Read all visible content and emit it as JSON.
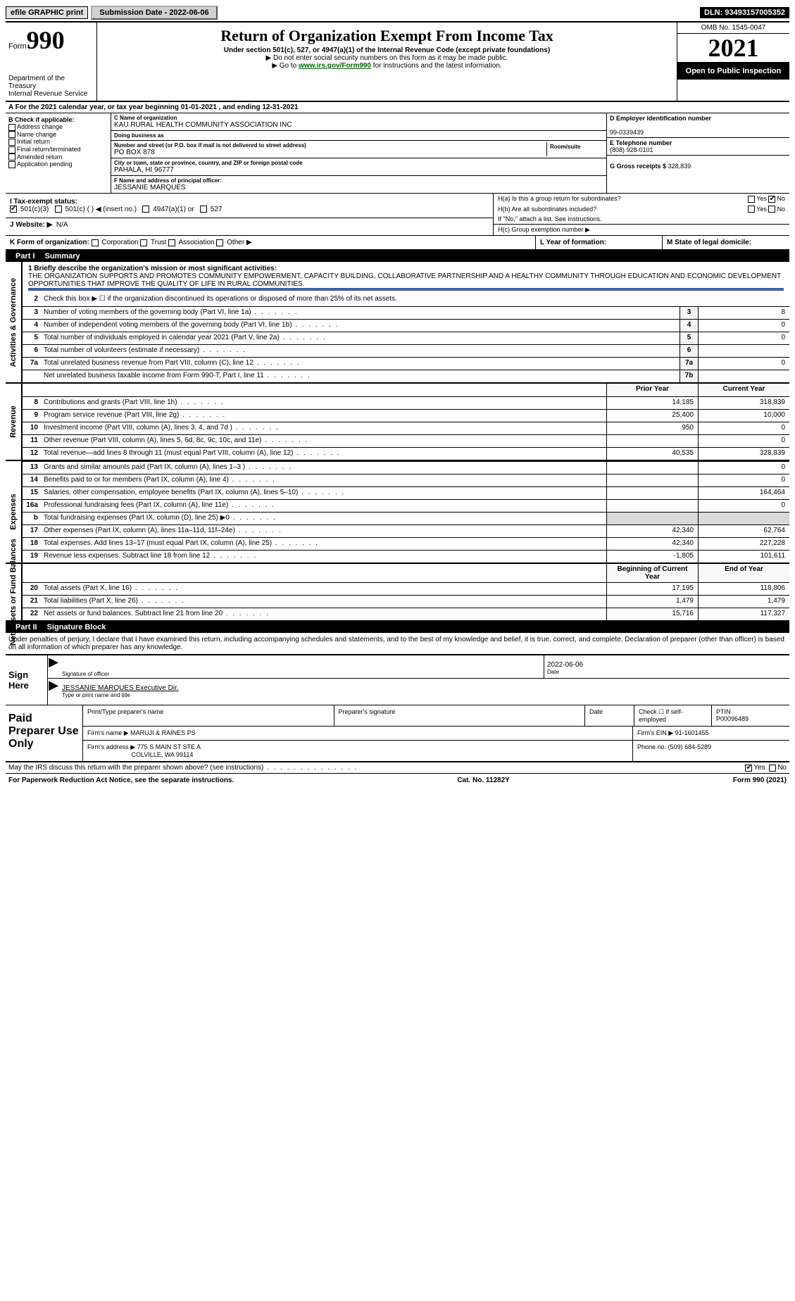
{
  "colors": {
    "black": "#000000",
    "white": "#ffffff",
    "shade": "#d9d9d9",
    "link": "#006600",
    "rule_blue": "#4060a0"
  },
  "topbar": {
    "efile": "efile GRAPHIC print",
    "subdate_label": "Submission Date - 2022-06-06",
    "dln": "DLN: 93493157005352"
  },
  "header": {
    "form_word": "Form",
    "form_num": "990",
    "dept": "Department of the Treasury",
    "irs": "Internal Revenue Service",
    "title": "Return of Organization Exempt From Income Tax",
    "sub1": "Under section 501(c), 527, or 4947(a)(1) of the Internal Revenue Code (except private foundations)",
    "sub2": "▶ Do not enter social security numbers on this form as it may be made public.",
    "sub3_pre": "▶ Go to ",
    "sub3_link": "www.irs.gov/Form990",
    "sub3_post": " for instructions and the latest information.",
    "omb": "OMB No. 1545-0047",
    "year": "2021",
    "open": "Open to Public Inspection"
  },
  "row_a": {
    "text_pre": "A For the 2021 calendar year, or tax year beginning ",
    "begin": "01-01-2021",
    "mid": "   , and ending ",
    "end": "12-31-2021"
  },
  "col_b": {
    "hdr": "B Check if applicable:",
    "items": [
      "Address change",
      "Name change",
      "Initial return",
      "Final return/terminated",
      "Amended return",
      "Application pending"
    ]
  },
  "col_c": {
    "name_lbl": "C Name of organization",
    "name": "KAU RURAL HEALTH COMMUNITY ASSOCIATION INC",
    "dba_lbl": "Doing business as",
    "dba": "",
    "addr_lbl": "Number and street (or P.O. box if mail is not delivered to street address)",
    "room_lbl": "Room/suite",
    "addr": "PO BOX 878",
    "city_lbl": "City or town, state or province, country, and ZIP or foreign postal code",
    "city": "PAHALA, HI  96777",
    "f_lbl": "F Name and address of principal officer:",
    "officer": "JESSANIE MARQUES"
  },
  "col_d": {
    "ein_lbl": "D Employer identification number",
    "ein": "99-0339439",
    "tel_lbl": "E Telephone number",
    "tel": "(808) 928-0101",
    "gross_lbl": "G Gross receipts $",
    "gross": "328,839"
  },
  "col_h": {
    "ha": "H(a)  Is this a group return for subordinates?",
    "hb": "H(b)  Are all subordinates included?",
    "hb_note": "If \"No,\" attach a list. See instructions.",
    "hc": "H(c)  Group exemption number ▶",
    "yes": "Yes",
    "no": "No"
  },
  "row_i": {
    "lbl": "I   Tax-exempt status:",
    "opts": [
      "501(c)(3)",
      "501(c) (  ) ◀ (insert no.)",
      "4947(a)(1) or",
      "527"
    ]
  },
  "row_j": {
    "lbl": "J   Website: ▶",
    "val": "N/A"
  },
  "row_k": {
    "lbl": "K Form of organization:",
    "opts": [
      "Corporation",
      "Trust",
      "Association",
      "Other ▶"
    ]
  },
  "row_l": {
    "lbl": "L Year of formation:",
    "val": ""
  },
  "row_m": {
    "lbl": "M State of legal domicile:",
    "val": ""
  },
  "part1": {
    "num": "Part I",
    "title": "Summary"
  },
  "summary": {
    "line1_lbl": "1   Briefly describe the organization's mission or most significant activities:",
    "mission": "THE ORGANIZATION SUPPORTS AND PROMOTES COMMUNITY EMPOWERMENT, CAPACITY BUILDING, COLLABORATIVE PARTNERSHIP AND A HEALTHY COMMUNITY THROUGH EDUCATION AND ECONOMIC DEVELOPMENT OPPORTUNITIES THAT IMPROVE THE QUALITY OF LIFE IN RURAL COMMUNITIES.",
    "line2": "Check this box ▶ ☐  if the organization discontinued its operations or disposed of more than 25% of its net assets.",
    "side_gov": "Activities & Governance",
    "side_rev": "Revenue",
    "side_exp": "Expenses",
    "side_net": "Net Assets or Fund Balances",
    "hdr_prior": "Prior Year",
    "hdr_curr": "Current Year",
    "hdr_begin": "Beginning of Current Year",
    "hdr_end": "End of Year",
    "rows_gov": [
      {
        "n": "3",
        "t": "Number of voting members of the governing body (Part VI, line 1a)",
        "box": "3",
        "v": "8"
      },
      {
        "n": "4",
        "t": "Number of independent voting members of the governing body (Part VI, line 1b)",
        "box": "4",
        "v": "0"
      },
      {
        "n": "5",
        "t": "Total number of individuals employed in calendar year 2021 (Part V, line 2a)",
        "box": "5",
        "v": "0"
      },
      {
        "n": "6",
        "t": "Total number of volunteers (estimate if necessary)",
        "box": "6",
        "v": ""
      },
      {
        "n": "7a",
        "t": "Total unrelated business revenue from Part VIII, column (C), line 12",
        "box": "7a",
        "v": "0"
      },
      {
        "n": "",
        "t": "Net unrelated business taxable income from Form 990-T, Part I, line 11",
        "box": "7b",
        "v": ""
      }
    ],
    "rows_rev": [
      {
        "n": "8",
        "t": "Contributions and grants (Part VIII, line 1h)",
        "p": "14,185",
        "c": "318,839"
      },
      {
        "n": "9",
        "t": "Program service revenue (Part VIII, line 2g)",
        "p": "25,400",
        "c": "10,000"
      },
      {
        "n": "10",
        "t": "Investment income (Part VIII, column (A), lines 3, 4, and 7d )",
        "p": "950",
        "c": "0"
      },
      {
        "n": "11",
        "t": "Other revenue (Part VIII, column (A), lines 5, 6d, 8c, 9c, 10c, and 11e)",
        "p": "",
        "c": "0"
      },
      {
        "n": "12",
        "t": "Total revenue—add lines 8 through 11 (must equal Part VIII, column (A), line 12)",
        "p": "40,535",
        "c": "328,839"
      }
    ],
    "rows_exp": [
      {
        "n": "13",
        "t": "Grants and similar amounts paid (Part IX, column (A), lines 1–3 )",
        "p": "",
        "c": "0"
      },
      {
        "n": "14",
        "t": "Benefits paid to or for members (Part IX, column (A), line 4)",
        "p": "",
        "c": "0"
      },
      {
        "n": "15",
        "t": "Salaries, other compensation, employee benefits (Part IX, column (A), lines 5–10)",
        "p": "",
        "c": "164,464"
      },
      {
        "n": "16a",
        "t": "Professional fundraising fees (Part IX, column (A), line 11e)",
        "p": "",
        "c": "0"
      },
      {
        "n": "b",
        "t": "Total fundraising expenses (Part IX, column (D), line 25) ▶0",
        "p": "SHADE",
        "c": "SHADE"
      },
      {
        "n": "17",
        "t": "Other expenses (Part IX, column (A), lines 11a–11d, 11f–24e)",
        "p": "42,340",
        "c": "62,764"
      },
      {
        "n": "18",
        "t": "Total expenses. Add lines 13–17 (must equal Part IX, column (A), line 25)",
        "p": "42,340",
        "c": "227,228"
      },
      {
        "n": "19",
        "t": "Revenue less expenses. Subtract line 18 from line 12",
        "p": "-1,805",
        "c": "101,611"
      }
    ],
    "rows_net": [
      {
        "n": "20",
        "t": "Total assets (Part X, line 16)",
        "p": "17,195",
        "c": "118,806"
      },
      {
        "n": "21",
        "t": "Total liabilities (Part X, line 26)",
        "p": "1,479",
        "c": "1,479"
      },
      {
        "n": "22",
        "t": "Net assets or fund balances. Subtract line 21 from line 20",
        "p": "15,716",
        "c": "117,327"
      }
    ]
  },
  "part2": {
    "num": "Part II",
    "title": "Signature Block"
  },
  "penalty": "Under penalties of perjury, I declare that I have examined this return, including accompanying schedules and statements, and to the best of my knowledge and belief, it is true, correct, and complete. Declaration of preparer (other than officer) is based on all information of which preparer has any knowledge.",
  "sign": {
    "here": "Sign Here",
    "sig_lbl": "Signature of officer",
    "date_lbl": "Date",
    "date": "2022-06-06",
    "name": "JESSANIE MARQUES  Executive Dir.",
    "name_lbl": "Type or print name and title"
  },
  "prep": {
    "hdr": "Paid Preparer Use Only",
    "cols": [
      "Print/Type preparer's name",
      "Preparer's signature",
      "Date"
    ],
    "check_lbl": "Check ☐ if self-employed",
    "ptin_lbl": "PTIN",
    "ptin": "P00096489",
    "firm_name_lbl": "Firm's name    ▶",
    "firm_name": "MARUJI & RAINES PS",
    "firm_ein_lbl": "Firm's EIN ▶",
    "firm_ein": "91-1601455",
    "firm_addr_lbl": "Firm's address ▶",
    "firm_addr1": "775 S MAIN ST STE A",
    "firm_addr2": "COLVILLE, WA  99114",
    "phone_lbl": "Phone no.",
    "phone": "(509) 684-5289"
  },
  "footer": {
    "discuss": "May the IRS discuss this return with the preparer shown above? (see instructions)",
    "yes": "Yes",
    "no": "No",
    "pra": "For Paperwork Reduction Act Notice, see the separate instructions.",
    "cat": "Cat. No. 11282Y",
    "form": "Form 990 (2021)"
  }
}
